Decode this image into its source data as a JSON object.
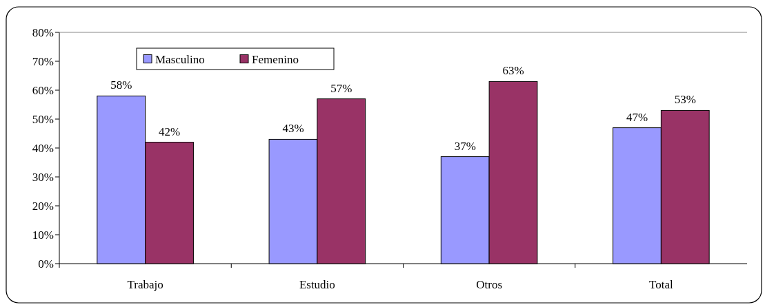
{
  "chart_data": {
    "type": "bar",
    "categories": [
      "Trabajo",
      "Estudio",
      "Otros",
      "Total"
    ],
    "series": [
      {
        "name": "Masculino",
        "color": "#9999ff",
        "values": [
          58,
          43,
          37,
          47
        ],
        "value_labels": [
          "58%",
          "43%",
          "37%",
          "47%"
        ]
      },
      {
        "name": "Femenino",
        "color": "#993366",
        "values": [
          42,
          57,
          63,
          53
        ],
        "value_labels": [
          "42%",
          "57%",
          "63%",
          "53%"
        ]
      }
    ],
    "ylim": [
      0,
      80
    ],
    "yticks": [
      {
        "value": 0,
        "label": "0%"
      },
      {
        "value": 10,
        "label": "10%"
      },
      {
        "value": 20,
        "label": "20%"
      },
      {
        "value": 30,
        "label": "30%"
      },
      {
        "value": 40,
        "label": "40%"
      },
      {
        "value": 50,
        "label": "50%"
      },
      {
        "value": 60,
        "label": "60%"
      },
      {
        "value": 70,
        "label": "70%"
      },
      {
        "value": 80,
        "label": "80%"
      }
    ],
    "grid": false,
    "legend": "top left"
  }
}
